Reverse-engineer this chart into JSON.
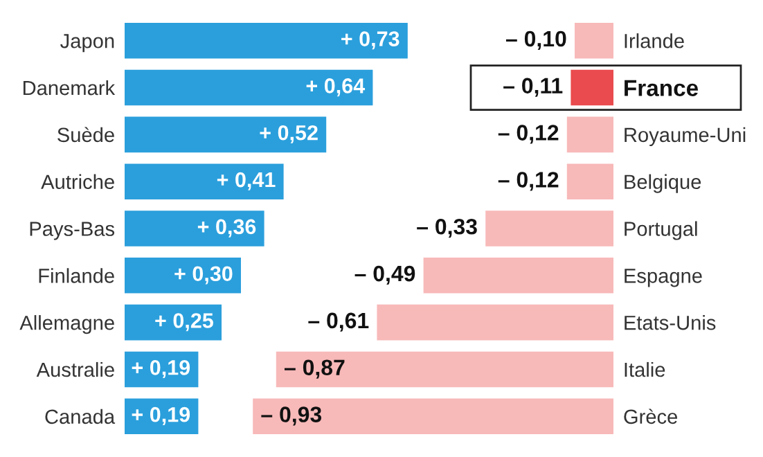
{
  "chart_data": [
    {
      "type": "bar",
      "orientation": "horizontal",
      "tick_labels": "y",
      "categories": [
        "Japon",
        "Danemark",
        "Suède",
        "Autriche",
        "Pays-Bas",
        "Finlande",
        "Allemagne",
        "Australie",
        "Canada"
      ],
      "values": [
        0.73,
        0.64,
        0.52,
        0.41,
        0.36,
        0.3,
        0.25,
        0.19,
        0.19
      ],
      "value_labels": [
        "+ 0,73",
        "+ 0,64",
        "+ 0,52",
        "+ 0,41",
        "+ 0,36",
        "+ 0,30",
        "+ 0,25",
        "+ 0,19",
        "+ 0,19"
      ],
      "color": "#2b9fdc"
    },
    {
      "type": "bar",
      "orientation": "horizontal",
      "tick_labels": "y",
      "categories": [
        "Irlande",
        "France",
        "Royaume-Uni",
        "Belgique",
        "Portugal",
        "Espagne",
        "Etats-Unis",
        "Italie",
        "Grèce"
      ],
      "values": [
        -0.1,
        -0.11,
        -0.12,
        -0.12,
        -0.33,
        -0.49,
        -0.61,
        -0.87,
        -0.93
      ],
      "value_labels": [
        "– 0,10",
        "– 0,11",
        "– 0,12",
        "– 0,12",
        "– 0,33",
        "– 0,49",
        "– 0,61",
        "– 0,87",
        "– 0,93"
      ],
      "colors": [
        "#f8b9b9",
        "#ea4b4e",
        "#f8b9b9",
        "#f8b9b9",
        "#f8b9b9",
        "#f8b9b9",
        "#f8b9b9",
        "#f8b9b9",
        "#f8b9b9"
      ]
    }
  ]
}
